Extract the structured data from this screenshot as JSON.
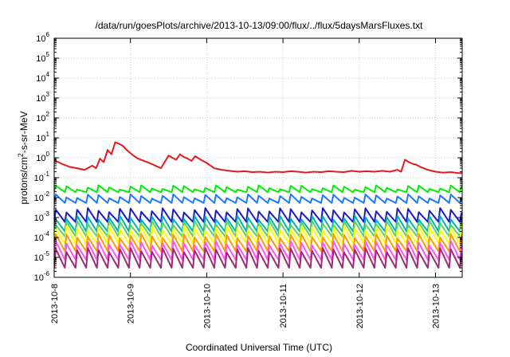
{
  "chart_data": {
    "type": "line",
    "title": "/data/run/goesPlots/archive/2013-10-13/09:00/flux/../flux/5daysMarsFluxes.txt",
    "xlabel": "Coordinated Universal Time (UTC)",
    "ylabel": {
      "pre": "protons/cm",
      "sup": "2",
      "post": "-s-sr-MeV"
    },
    "x_tick_labels": [
      "2013-10-8",
      "2013-10-9",
      "2013-10-10",
      "2013-10-11",
      "2013-10-12",
      "2013-10-13"
    ],
    "x_ticks_days": [
      0,
      1,
      2,
      3,
      4,
      5
    ],
    "xlim_days": [
      0,
      5.35
    ],
    "y_scale": "log",
    "y_tick_labels": [
      {
        "base": "10",
        "exp": "-6"
      },
      {
        "base": "10",
        "exp": "-5"
      },
      {
        "base": "10",
        "exp": "-4"
      },
      {
        "base": "10",
        "exp": "-3"
      },
      {
        "base": "10",
        "exp": "-2"
      },
      {
        "base": "10",
        "exp": "-1"
      },
      {
        "base": "10",
        "exp": "0"
      },
      {
        "base": "10",
        "exp": "1"
      },
      {
        "base": "10",
        "exp": "2"
      },
      {
        "base": "10",
        "exp": "3"
      },
      {
        "base": "10",
        "exp": "4"
      },
      {
        "base": "10",
        "exp": "5"
      },
      {
        "base": "10",
        "exp": "6"
      }
    ],
    "ylim_exp": [
      -6,
      6
    ],
    "grid": true,
    "series": [
      {
        "color": "#e41a1c",
        "x": [
          0,
          0.1,
          0.2,
          0.3,
          0.4,
          0.5,
          0.55,
          0.6,
          0.65,
          0.7,
          0.75,
          0.8,
          0.85,
          0.9,
          0.95,
          1.0,
          1.05,
          1.1,
          1.2,
          1.3,
          1.4,
          1.5,
          1.55,
          1.6,
          1.65,
          1.7,
          1.75,
          1.8,
          1.85,
          1.9,
          1.95,
          2.0,
          2.05,
          2.1,
          2.2,
          2.3,
          2.4,
          2.5,
          2.6,
          2.7,
          2.8,
          2.9,
          3.0,
          3.1,
          3.2,
          3.3,
          3.4,
          3.5,
          3.6,
          3.7,
          3.8,
          3.9,
          4.0,
          4.1,
          4.2,
          4.3,
          4.4,
          4.5,
          4.55,
          4.6,
          4.65,
          4.7,
          4.75,
          4.8,
          4.9,
          5.0,
          5.1,
          5.2,
          5.3,
          5.35
        ],
        "y": [
          0.75,
          0.5,
          0.35,
          0.3,
          0.25,
          0.4,
          0.3,
          0.9,
          0.6,
          2.5,
          1.5,
          6.0,
          5.0,
          4.0,
          2.5,
          1.7,
          1.2,
          0.9,
          0.65,
          0.45,
          0.3,
          1.3,
          1.0,
          0.8,
          1.5,
          1.1,
          0.9,
          0.7,
          1.2,
          0.9,
          0.7,
          0.55,
          0.4,
          0.3,
          0.25,
          0.22,
          0.2,
          0.21,
          0.19,
          0.2,
          0.18,
          0.2,
          0.19,
          0.21,
          0.2,
          0.18,
          0.2,
          0.19,
          0.21,
          0.2,
          0.19,
          0.22,
          0.2,
          0.21,
          0.2,
          0.22,
          0.2,
          0.25,
          0.2,
          0.8,
          0.6,
          0.5,
          0.45,
          0.35,
          0.25,
          0.2,
          0.18,
          0.19,
          0.17,
          0.17
        ]
      },
      {
        "color": "#00ee00",
        "base": 0.025,
        "amp": 1.8,
        "period": 0.14
      },
      {
        "color": "#1f77ff",
        "base": 0.008,
        "amp": 2.2,
        "period": 0.14
      },
      {
        "color": "#1a1acc",
        "base": 0.0012,
        "amp": 4.0,
        "period": 0.14
      },
      {
        "color": "#00b3b3",
        "base": 0.00045,
        "amp": 5.0,
        "period": 0.14
      },
      {
        "color": "#5dd35d",
        "base": 0.00025,
        "amp": 5.0,
        "period": 0.14
      },
      {
        "color": "#ffff00",
        "base": 0.00012,
        "amp": 6.0,
        "period": 0.14
      },
      {
        "color": "#ff9900",
        "base": 5e-05,
        "amp": 6.0,
        "period": 0.14
      },
      {
        "color": "#ff55ff",
        "base": 2e-05,
        "amp": 7.0,
        "period": 0.14
      },
      {
        "color": "#a02a70",
        "base": 8.5e-06,
        "amp": 8.0,
        "period": 0.14
      }
    ]
  }
}
